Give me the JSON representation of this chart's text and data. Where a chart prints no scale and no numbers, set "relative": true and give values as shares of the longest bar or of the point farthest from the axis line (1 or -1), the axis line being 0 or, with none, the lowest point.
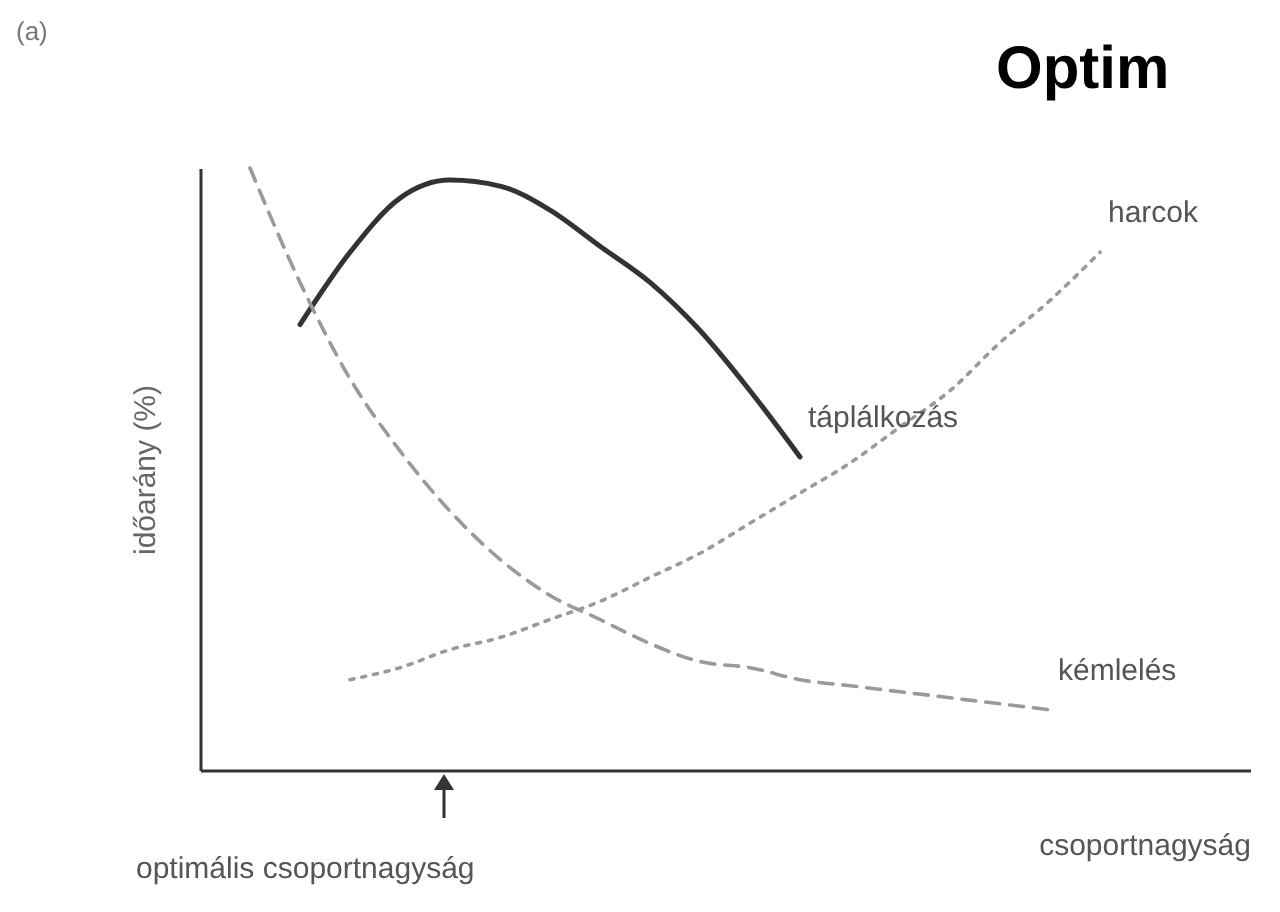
{
  "chart_data": {
    "type": "line",
    "title": "Optim",
    "xlabel": "csoportnagyság",
    "ylabel": "időarány (%)",
    "annotations": [
      "(a)",
      "optimális csoportnagyság"
    ],
    "relative": true,
    "legend": false,
    "grid": false,
    "categories": [
      null,
      null,
      null,
      null,
      null,
      null,
      null,
      null,
      null,
      null,
      null,
      null,
      null,
      null,
      null,
      null,
      null,
      null,
      null,
      null,
      null,
      null
    ],
    "series": [
      {
        "name": "táplálkozás",
        "color": "#333333",
        "line_style": "solid",
        "values": [
          null,
          null,
          0.74,
          0.86,
          0.95,
          0.98,
          0.97,
          0.93,
          0.87,
          0.81,
          0.73,
          0.63,
          0.52,
          null,
          null,
          null,
          null,
          null,
          null,
          null,
          null,
          null
        ]
      },
      {
        "name": "harcok",
        "color": "#9a9a9a",
        "line_style": "dotted",
        "values": [
          null,
          null,
          null,
          0.15,
          0.17,
          0.2,
          0.22,
          0.25,
          0.28,
          0.32,
          0.36,
          0.41,
          0.46,
          0.51,
          0.57,
          0.63,
          0.71,
          0.78,
          0.86,
          null,
          null,
          null
        ]
      },
      {
        "name": "kémlelés",
        "color": "#9a9a9a",
        "line_style": "dashed",
        "values": [
          null,
          1.0,
          0.81,
          0.65,
          0.53,
          0.43,
          0.35,
          0.29,
          0.25,
          0.21,
          0.18,
          0.17,
          0.15,
          0.14,
          0.13,
          0.12,
          0.11,
          0.1,
          null,
          null,
          null,
          null
        ]
      }
    ]
  }
}
